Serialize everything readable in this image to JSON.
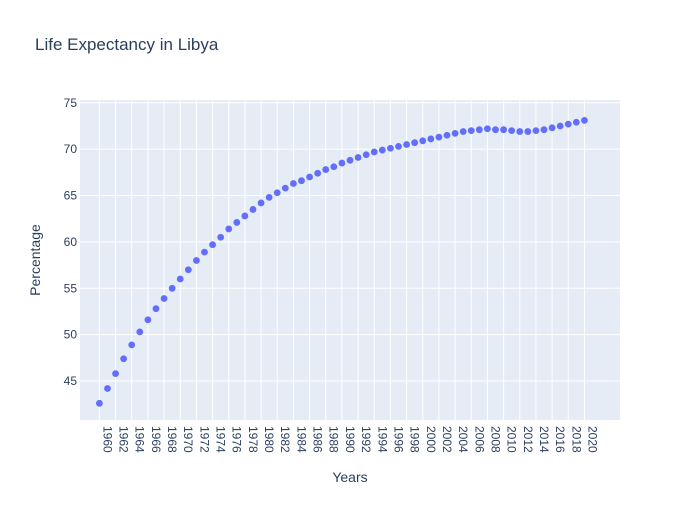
{
  "chart_data": {
    "type": "scatter",
    "title": "Life Expectancy in Libya",
    "xlabel": "Years",
    "ylabel": "Percentage",
    "xlim": [
      1957.6,
      2024.4
    ],
    "ylim": [
      40.8,
      75.3
    ],
    "x_ticks": [
      "1960",
      "1962",
      "1964",
      "1966",
      "1968",
      "1970",
      "1972",
      "1974",
      "1976",
      "1978",
      "1980",
      "1982",
      "1984",
      "1986",
      "1988",
      "1990",
      "1992",
      "1994",
      "1996",
      "1998",
      "2000",
      "2002",
      "2004",
      "2006",
      "2008",
      "2010",
      "2012",
      "2014",
      "2016",
      "2018",
      "2020"
    ],
    "y_ticks": [
      45,
      50,
      55,
      60,
      65,
      70,
      75
    ],
    "grid": true,
    "colors": {
      "plot_bg": "#e5ecf6",
      "grid": "#ffffff",
      "marker": "#636efa",
      "text": "#2a3f5f"
    },
    "series": [
      {
        "x": [
          1960,
          1961,
          1962,
          1963,
          1964,
          1965,
          1966,
          1967,
          1968,
          1969,
          1970,
          1971,
          1972,
          1973,
          1974,
          1975,
          1976,
          1977,
          1978,
          1979,
          1980,
          1981,
          1982,
          1983,
          1984,
          1985,
          1986,
          1987,
          1988,
          1989,
          1990,
          1991,
          1992,
          1993,
          1994,
          1995,
          1996,
          1997,
          1998,
          1999,
          2000,
          2001,
          2002,
          2003,
          2004,
          2005,
          2006,
          2007,
          2008,
          2009,
          2010,
          2011,
          2012,
          2013,
          2014,
          2015,
          2016,
          2017,
          2018,
          2019,
          2020
        ],
        "values": [
          42.6,
          44.2,
          45.8,
          47.4,
          48.9,
          50.3,
          51.6,
          52.8,
          53.9,
          55.0,
          56.0,
          57.0,
          58.0,
          58.9,
          59.7,
          60.5,
          61.4,
          62.1,
          62.8,
          63.5,
          64.2,
          64.8,
          65.3,
          65.8,
          66.3,
          66.6,
          67.0,
          67.4,
          67.8,
          68.1,
          68.5,
          68.8,
          69.1,
          69.4,
          69.7,
          69.9,
          70.1,
          70.3,
          70.5,
          70.7,
          70.9,
          71.1,
          71.3,
          71.5,
          71.7,
          71.9,
          72.0,
          72.1,
          72.2,
          72.1,
          72.1,
          72.0,
          71.9,
          71.9,
          72.0,
          72.1,
          72.3,
          72.5,
          72.7,
          72.9,
          73.1
        ]
      }
    ]
  }
}
